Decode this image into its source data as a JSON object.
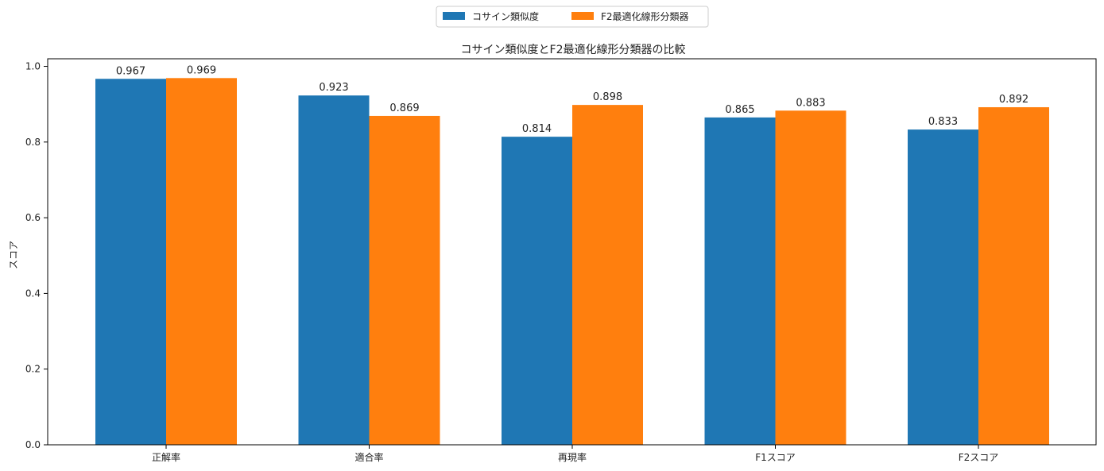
{
  "chart_data": {
    "type": "bar",
    "title": "コサイン類似度とF2最適化線形分類器の比較",
    "xlabel": "",
    "ylabel": "スコア",
    "categories": [
      "正解率",
      "適合率",
      "再現率",
      "F1スコア",
      "F2スコア"
    ],
    "series": [
      {
        "name": "コサイン類似度",
        "color": "#1f77b4",
        "values": [
          0.967,
          0.923,
          0.814,
          0.865,
          0.833
        ]
      },
      {
        "name": "F2最適化線形分類器",
        "color": "#ff7f0e",
        "values": [
          0.969,
          0.869,
          0.898,
          0.883,
          0.892
        ]
      }
    ],
    "ylim": [
      0,
      1.02
    ],
    "yticks": [
      0.0,
      0.2,
      0.4,
      0.6,
      0.8,
      1.0
    ],
    "legend_position": "top-center",
    "grid": false,
    "data_labels": true
  }
}
